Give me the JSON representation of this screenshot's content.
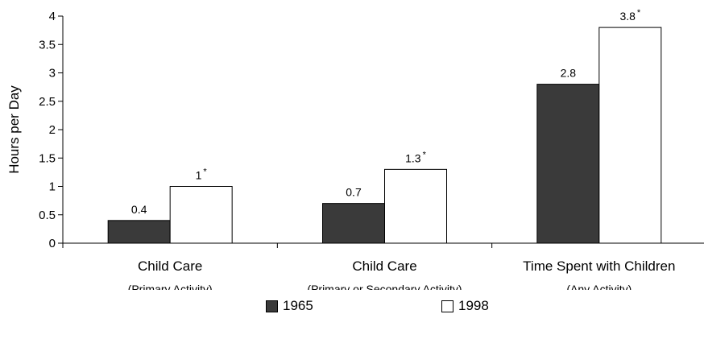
{
  "chart_data": {
    "type": "bar",
    "title": "",
    "xlabel": "",
    "ylabel": "Hours per Day",
    "ylim": [
      0,
      4
    ],
    "yticks": [
      "0",
      "0.5",
      "1",
      "1.5",
      "2",
      "2.5",
      "3",
      "3.5",
      "4"
    ],
    "grid": false,
    "legend_position": "bottom",
    "categories": [
      {
        "label": "Child Care",
        "sublabel": "(Primary Activity)"
      },
      {
        "label": "Child Care",
        "sublabel": "(Primary or Secondary Activity)"
      },
      {
        "label": "Time Spent with Children",
        "sublabel": "(Any Activity)"
      }
    ],
    "series": [
      {
        "name": "1965",
        "color": "#3a3a3a",
        "values": [
          0.4,
          0.7,
          2.8
        ],
        "labels": [
          "0.4",
          "0.7",
          "2.8"
        ],
        "significant": [
          false,
          false,
          false
        ]
      },
      {
        "name": "1998",
        "color": "#ffffff",
        "values": [
          1,
          1.3,
          3.8
        ],
        "labels": [
          "1",
          "1.3",
          "3.8"
        ],
        "significant": [
          true,
          true,
          true
        ]
      }
    ],
    "significance_marker": "*"
  }
}
